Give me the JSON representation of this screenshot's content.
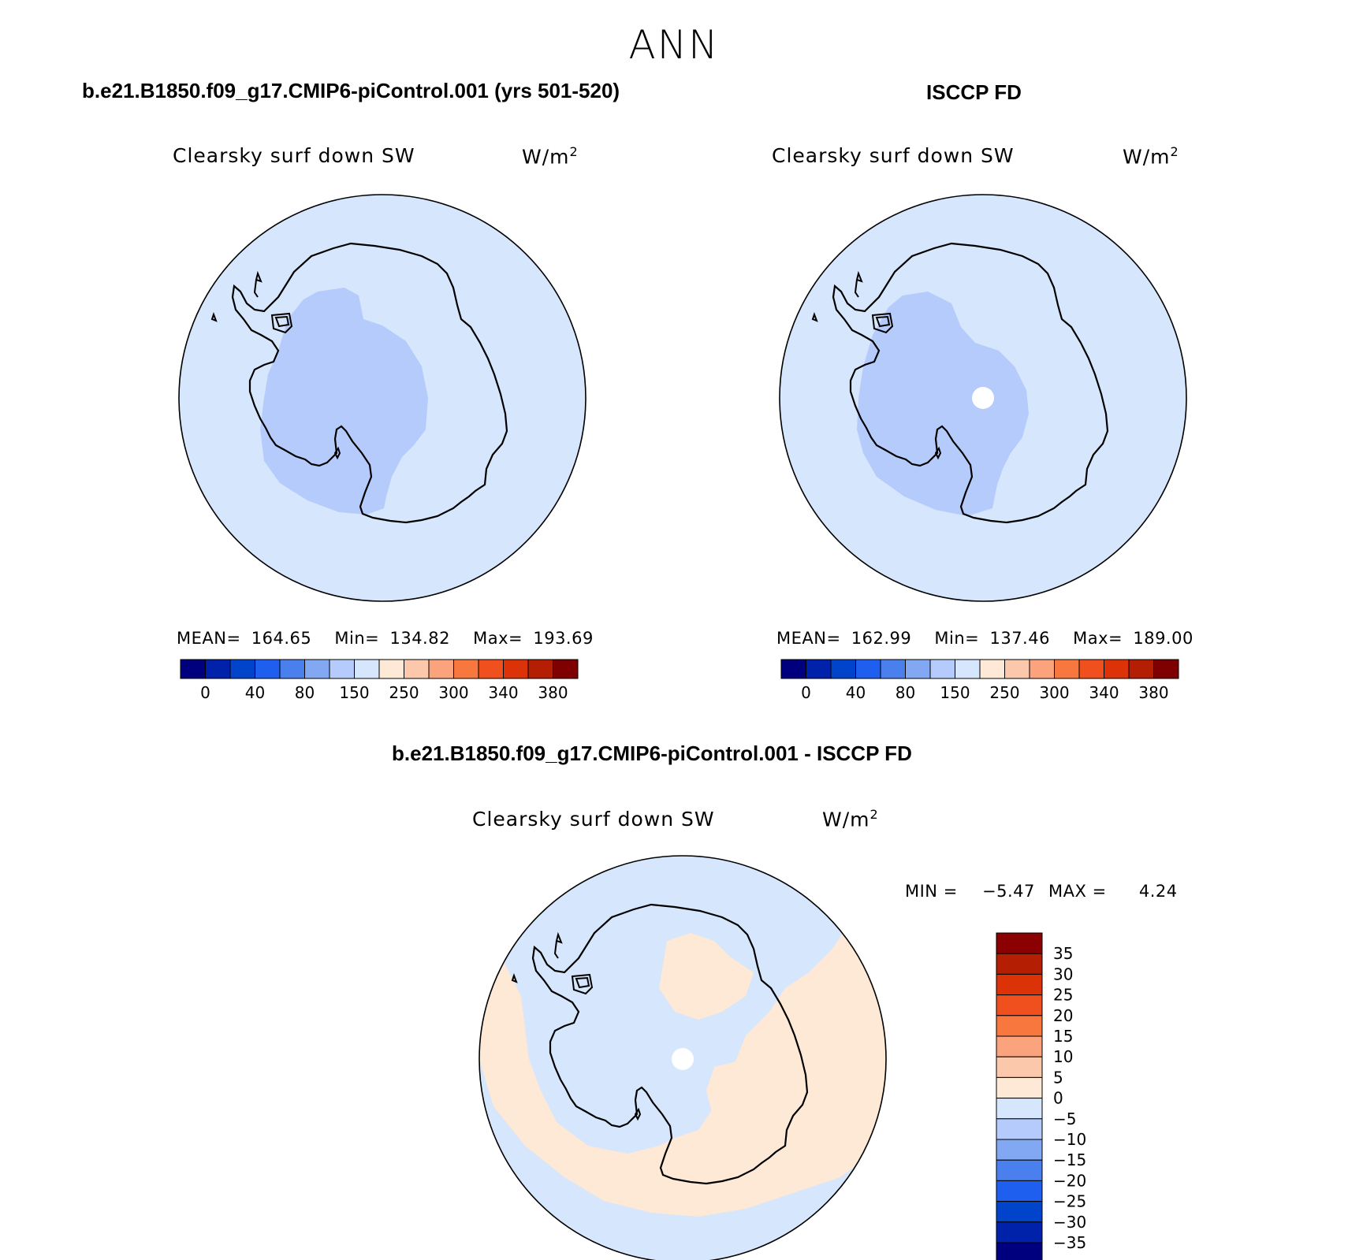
{
  "figure": {
    "title": "ANN"
  },
  "panels": [
    {
      "id": "model",
      "title": "b.e21.B1850.f09_g17.CMIP6-piControl.001 (yrs 501-520)",
      "variable": "Clearsky surf down SW",
      "units_base": "W/m",
      "units_exp": "2",
      "stats": {
        "mean_label": "MEAN=",
        "mean": "164.65",
        "min_label": "Min=",
        "min": "134.82",
        "max_label": "Max=",
        "max": "193.69"
      }
    },
    {
      "id": "obs",
      "title": "ISCCP FD",
      "variable": "Clearsky surf down SW",
      "units_base": "W/m",
      "units_exp": "2",
      "stats": {
        "mean_label": "MEAN=",
        "mean": "162.99",
        "min_label": "Min=",
        "min": "137.46",
        "max_label": "Max=",
        "max": "189.00"
      }
    },
    {
      "id": "diff",
      "title": "b.e21.B1850.f09_g17.CMIP6-piControl.001 - ISCCP FD",
      "variable": "Clearsky surf down SW",
      "units_base": "W/m",
      "units_exp": "2",
      "stats": {
        "min_label": "MIN =",
        "min": "−5.47",
        "max_label": "MAX =",
        "max": "4.24"
      }
    }
  ],
  "colorbar_horizontal": {
    "colors": [
      "#00007f",
      "#0022aa",
      "#0044cc",
      "#1e5ff0",
      "#4a80ee",
      "#82a8f4",
      "#b5cbfb",
      "#d6e6fc",
      "#fee8d6",
      "#fcc8ac",
      "#fba37d",
      "#f7773f",
      "#f04f1e",
      "#dc3208",
      "#b41e02",
      "#7f0000"
    ],
    "tick_labels": [
      "0",
      "40",
      "80",
      "150",
      "250",
      "300",
      "340",
      "380"
    ]
  },
  "colorbar_vertical": {
    "colors_top_to_bottom": [
      "#8b0000",
      "#b41e02",
      "#dc3208",
      "#f04f1e",
      "#f7773f",
      "#fba37d",
      "#fcc8ac",
      "#fee8d6",
      "#d6e6fc",
      "#b5cbfb",
      "#82a8f4",
      "#4a80ee",
      "#1e5ff0",
      "#0044cc",
      "#0022aa",
      "#00007f"
    ],
    "tick_labels_top_to_bottom": [
      "35",
      "30",
      "25",
      "20",
      "15",
      "10",
      "5",
      "0",
      "−5",
      "−10",
      "−15",
      "−20",
      "−25",
      "−30",
      "−35"
    ]
  },
  "map_colors": {
    "ocean": "#d6e6fc",
    "west_antarctica": "#b5cbfb",
    "missing": "#ffffff",
    "positive_diff": "#fee8d6",
    "coastline": "#000000"
  }
}
